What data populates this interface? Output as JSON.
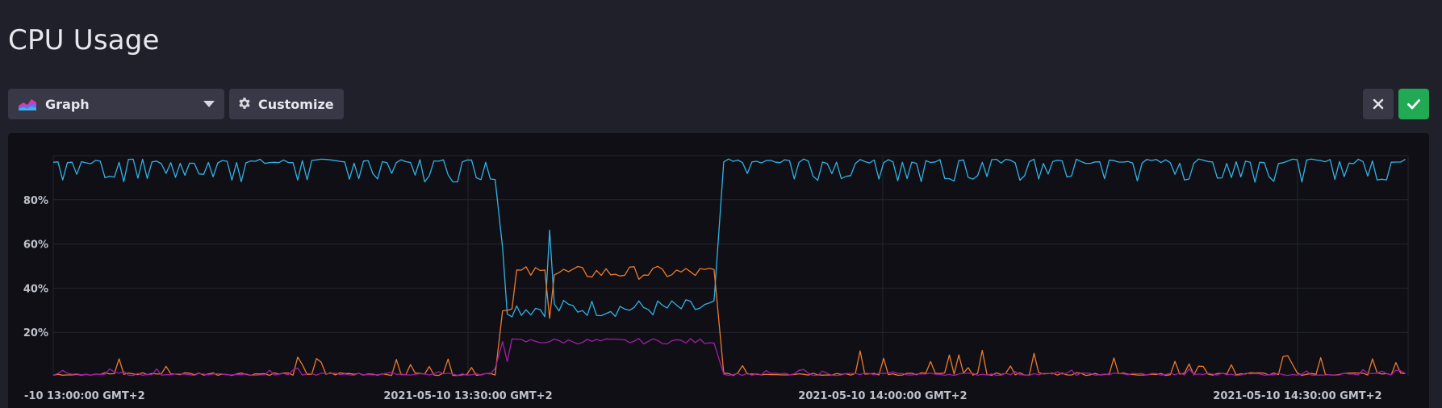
{
  "page": {
    "title": "CPU Usage"
  },
  "toolbar": {
    "view_type_label": "Graph",
    "customize_label": "Customize"
  },
  "icons": {
    "graph": "graph-icon",
    "caret": "chevron-down-icon",
    "customize": "gear-icon",
    "cancel": "close-icon",
    "confirm": "check-icon"
  },
  "colors": {
    "background": "#1f2029",
    "panel": "#0f0f15",
    "button": "#383846",
    "confirm": "#22a954"
  },
  "chart_data": {
    "type": "line",
    "y_tick_labels": [
      "20%",
      "40%",
      "60%",
      "80%"
    ],
    "x_tick_labels": [
      "-10 13:00:00 GMT+2",
      "2021-05-10 13:30:00 GMT+2",
      "2021-05-10 14:00:00 GMT+2",
      "2021-05-10 14:30:00 GMT+2"
    ],
    "ylim": [
      0,
      100
    ],
    "xlim_minutes": [
      0,
      98
    ],
    "grid": true,
    "legend": "none",
    "series": [
      {
        "color": "#32b2e6",
        "values_by_segment": [
          {
            "start": 0,
            "end": 32,
            "baseline": 97,
            "dip": 88
          },
          {
            "start": 32.5,
            "end": 48,
            "baseline": 31,
            "spike": 78
          },
          {
            "start": 48.5,
            "end": 98,
            "baseline": 97,
            "dip": 88
          }
        ]
      },
      {
        "color": "#ee7a2c",
        "values_by_segment": [
          {
            "start": 0,
            "end": 32,
            "baseline": 1,
            "spike": 10
          },
          {
            "start": 32.5,
            "end": 48,
            "baseline": 47,
            "dip": 25
          },
          {
            "start": 48.5,
            "end": 98,
            "baseline": 1,
            "spike": 12
          }
        ]
      },
      {
        "color": "#a21ea8",
        "values_by_segment": [
          {
            "start": 0,
            "end": 32,
            "baseline": 1
          },
          {
            "start": 32.5,
            "end": 48,
            "baseline": 16
          },
          {
            "start": 48.5,
            "end": 98,
            "baseline": 1
          }
        ]
      }
    ]
  }
}
